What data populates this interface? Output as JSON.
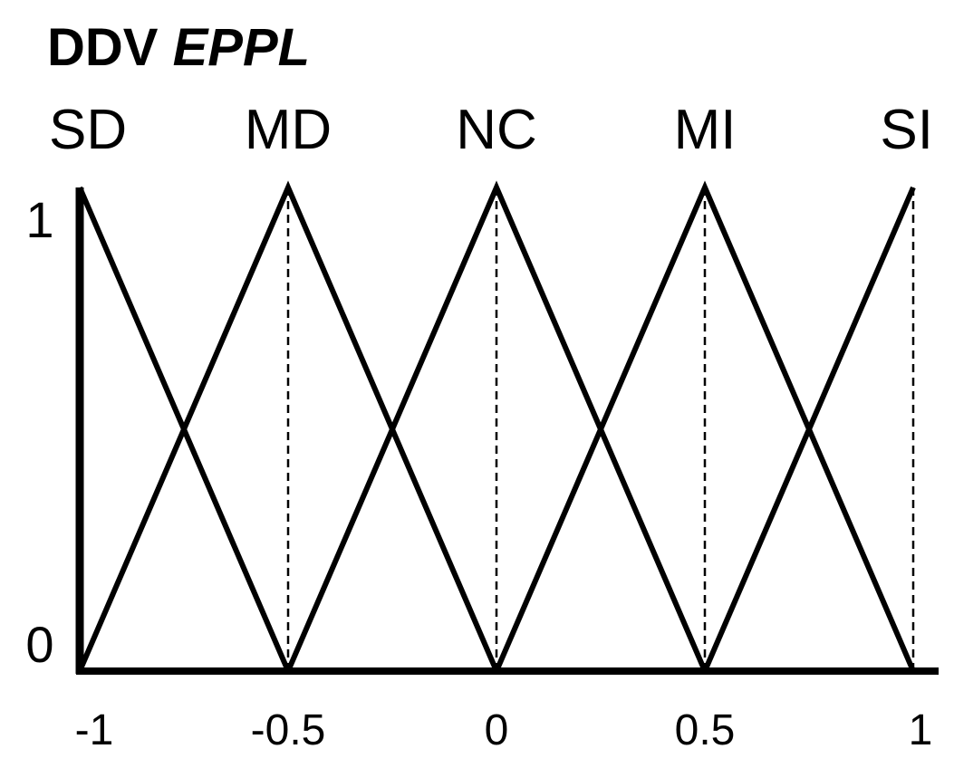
{
  "chart_data": {
    "type": "line",
    "title": "DDV ",
    "title_italic": "EPPL",
    "xlabel": "",
    "ylabel": "",
    "xlim": [
      -1,
      1
    ],
    "ylim": [
      0,
      1
    ],
    "x_ticks": [
      {
        "value": -1,
        "label": "-1"
      },
      {
        "value": -0.5,
        "label": "-0.5"
      },
      {
        "value": 0,
        "label": "0"
      },
      {
        "value": 0.5,
        "label": "0.5"
      },
      {
        "value": 1,
        "label": "1"
      }
    ],
    "y_ticks": [
      {
        "value": 0,
        "label": "0"
      },
      {
        "value": 1,
        "label": "1"
      }
    ],
    "series": [
      {
        "name": "SD",
        "points": [
          [
            -1,
            1
          ],
          [
            -0.5,
            0
          ]
        ]
      },
      {
        "name": "MD",
        "points": [
          [
            -1,
            0
          ],
          [
            -0.5,
            1
          ],
          [
            0,
            0
          ]
        ]
      },
      {
        "name": "NC",
        "points": [
          [
            -0.5,
            0
          ],
          [
            0,
            1
          ],
          [
            0.5,
            0
          ]
        ]
      },
      {
        "name": "MI",
        "points": [
          [
            0,
            0
          ],
          [
            0.5,
            1
          ],
          [
            1,
            0
          ]
        ]
      },
      {
        "name": "SI",
        "points": [
          [
            0.5,
            0
          ],
          [
            1,
            1
          ]
        ]
      }
    ],
    "peak_guides": [
      -0.5,
      0,
      0.5,
      1
    ],
    "line_color": "#000000"
  }
}
